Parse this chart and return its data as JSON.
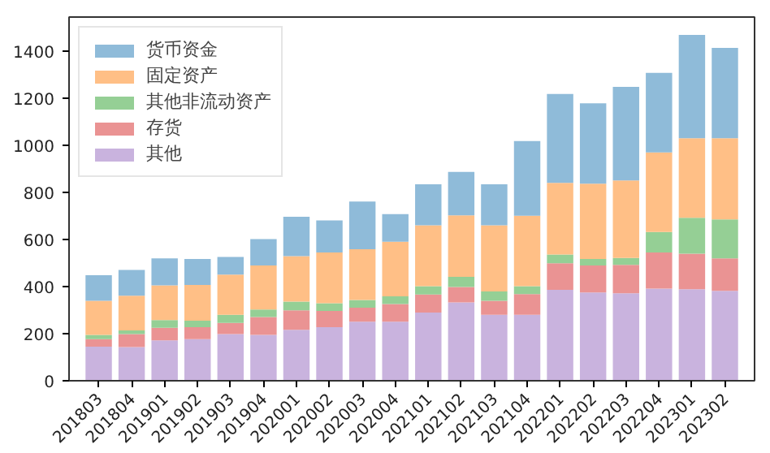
{
  "chart_data": {
    "type": "bar",
    "stacked": true,
    "categories": [
      "201803",
      "201804",
      "201901",
      "201902",
      "201903",
      "201904",
      "202001",
      "202002",
      "202003",
      "202004",
      "202101",
      "202102",
      "202103",
      "202104",
      "202201",
      "202202",
      "202203",
      "202204",
      "202301",
      "202302"
    ],
    "series": [
      {
        "name": "其他",
        "color": "#c9b3de",
        "values": [
          145,
          143,
          172,
          177,
          198,
          195,
          216,
          228,
          251,
          251,
          290,
          333,
          280,
          280,
          386,
          375,
          372,
          391,
          389,
          382
        ]
      },
      {
        "name": "存货",
        "color": "#ea9393",
        "values": [
          32,
          55,
          53,
          51,
          48,
          76,
          83,
          69,
          59,
          75,
          76,
          65,
          60,
          88,
          113,
          115,
          120,
          154,
          151,
          138
        ]
      },
      {
        "name": "其他非流动资产",
        "color": "#95cf95",
        "values": [
          18,
          16,
          33,
          27,
          34,
          32,
          37,
          32,
          33,
          33,
          36,
          43,
          39,
          34,
          37,
          27,
          30,
          87,
          152,
          165
        ]
      },
      {
        "name": "固定资产",
        "color": "#ffbf86",
        "values": [
          145,
          147,
          147,
          152,
          171,
          187,
          193,
          216,
          216,
          232,
          258,
          262,
          281,
          299,
          305,
          320,
          329,
          338,
          338,
          345
        ]
      },
      {
        "name": "货币资金",
        "color": "#8fbbd9",
        "values": [
          108,
          110,
          115,
          110,
          75,
          112,
          168,
          136,
          202,
          117,
          175,
          184,
          175,
          317,
          377,
          342,
          397,
          338,
          439,
          384
        ]
      }
    ],
    "ylim": [
      0,
      1545
    ],
    "yticks": [
      0,
      200,
      400,
      600,
      800,
      1000,
      1200,
      1400
    ],
    "grid": false,
    "legend": "top left"
  }
}
